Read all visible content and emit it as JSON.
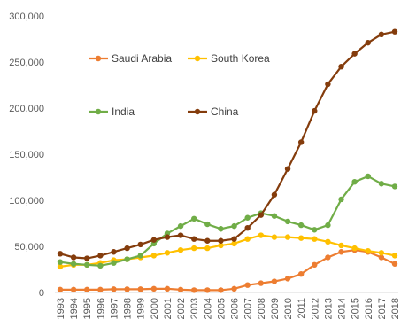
{
  "chart_data": {
    "type": "line",
    "title": "",
    "xlabel": "",
    "ylabel": "",
    "x": [
      "1993",
      "1994",
      "1995",
      "1996",
      "1997",
      "1998",
      "1999",
      "2000",
      "2001",
      "2002",
      "2003",
      "2004",
      "2005",
      "2006",
      "2007",
      "2008",
      "2009",
      "2010",
      "2011",
      "2012",
      "2013",
      "2014",
      "2015",
      "2016",
      "2017",
      "2018"
    ],
    "ylim": [
      0,
      300000
    ],
    "yticks": [
      0,
      50000,
      100000,
      150000,
      200000,
      250000,
      300000
    ],
    "ytick_labels": [
      "0",
      "50,000",
      "100,000",
      "150,000",
      "200,000",
      "250,000",
      "300,000"
    ],
    "grid": false,
    "legend_placement": "top-left",
    "series": [
      {
        "name": "Saudi Arabia",
        "color": "#ED7D31",
        "values": [
          3000,
          3000,
          3000,
          3000,
          3500,
          3500,
          3500,
          4000,
          4000,
          3000,
          2500,
          2500,
          2500,
          4000,
          8000,
          10000,
          12000,
          15000,
          20000,
          30000,
          38000,
          44000,
          46000,
          44000,
          38000,
          31000
        ]
      },
      {
        "name": "South Korea",
        "color": "#FFC000",
        "values": [
          28000,
          30000,
          30000,
          32000,
          35000,
          36000,
          38000,
          40000,
          43000,
          46000,
          48000,
          48000,
          51000,
          53000,
          58000,
          62000,
          60000,
          60000,
          59000,
          58000,
          55000,
          51000,
          48000,
          45000,
          43000,
          40000
        ]
      },
      {
        "name": "India",
        "color": "#70AD47",
        "values": [
          33000,
          31000,
          30000,
          29000,
          32000,
          36000,
          40000,
          53000,
          64000,
          72000,
          80000,
          74000,
          69000,
          72000,
          81000,
          86000,
          83000,
          77000,
          73000,
          68000,
          73000,
          101000,
          120000,
          126000,
          118000,
          115000
        ]
      },
      {
        "name": "China",
        "color": "#843C0C",
        "values": [
          42000,
          38000,
          37000,
          40000,
          44000,
          48000,
          52000,
          57000,
          60000,
          62000,
          58000,
          56000,
          56000,
          58000,
          70000,
          84000,
          106000,
          134000,
          163000,
          197000,
          226000,
          245000,
          259000,
          271000,
          280000,
          283000
        ]
      }
    ]
  }
}
